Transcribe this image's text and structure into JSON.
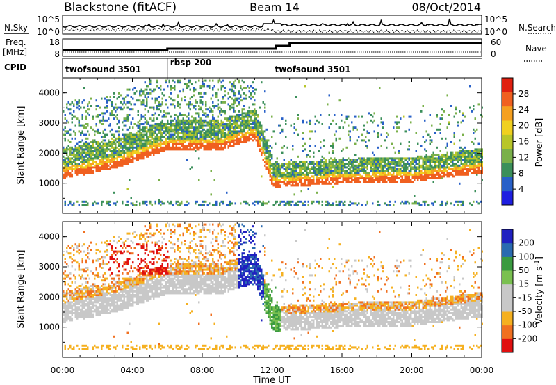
{
  "header": {
    "station": "Blackstone (fitACF)",
    "beam": "Beam 14",
    "date": "08/Oct/2014"
  },
  "summary_panels": {
    "nsky_label": "N.Sky",
    "nsearch_label": "N.Search",
    "noise_ticks": [
      "10^5",
      "10^0"
    ],
    "freq_label_top": "Freq.",
    "freq_label_unit": "[MHz]",
    "freq_ticks": [
      "18",
      "8"
    ],
    "nave_label": "Nave",
    "nave_ticks": [
      "60",
      "0"
    ],
    "cpid_label": "CPID",
    "cpid_segments": [
      {
        "name": "twofsound 3501",
        "start_hour": 0,
        "end_hour": 6
      },
      {
        "name": "rbsp 200",
        "start_hour": 6,
        "end_hour": 12
      },
      {
        "name": "twofsound 3501",
        "start_hour": 12,
        "end_hour": 24
      }
    ]
  },
  "colors": {
    "power": [
      "#1e1ee0",
      "#2860c8",
      "#3b8f5a",
      "#7ab04a",
      "#b8c62a",
      "#f0d020",
      "#f5a020",
      "#f06020",
      "#e02010"
    ],
    "velocity": [
      "#e01010",
      "#f07020",
      "#f5b020",
      "#c8c8c8",
      "#c8c8c8",
      "#7ac050",
      "#3a9a40",
      "#2a6ab0",
      "#2020c0"
    ]
  },
  "chart_data": [
    {
      "type": "heatmap",
      "name": "power",
      "xlabel": "",
      "ylabel": "Slant Range [km]",
      "xlim": [
        0,
        24
      ],
      "ylim": [
        0,
        4500
      ],
      "yticks": [
        "1000",
        "2000",
        "3000",
        "4000"
      ],
      "colorbar_label": "Power [dB]",
      "colorbar_ticks": [
        "4",
        "8",
        "12",
        "16",
        "20",
        "24",
        "28"
      ],
      "colorbar_range": [
        0,
        32
      ],
      "features": [
        {
          "name": "near-range ionospheric echo band",
          "range_km_at_hour": {
            "0": 1300,
            "3": 1650,
            "6": 2250,
            "9": 2250,
            "11": 2600,
            "12": 1000,
            "16": 1150,
            "20": 1200,
            "24": 1500
          },
          "peak_power_db": 28
        }
      ]
    },
    {
      "type": "heatmap",
      "name": "velocity",
      "xlabel": "Time UT",
      "ylabel": "Slant Range [km]",
      "xlim": [
        0,
        24
      ],
      "xticks": [
        "00:00",
        "04:00",
        "08:00",
        "12:00",
        "16:00",
        "20:00",
        "00:00"
      ],
      "ylim": [
        0,
        4500
      ],
      "yticks": [
        "1000",
        "2000",
        "3000",
        "4000"
      ],
      "colorbar_label": "Velocity [m s",
      "colorbar_label_sup": "-1",
      "colorbar_label_end": "]",
      "colorbar_ticks": [
        "-200",
        "-100",
        "-50",
        "-15",
        "15",
        "50",
        "100",
        "200"
      ],
      "colorbar_range": [
        -250,
        250
      ]
    }
  ]
}
